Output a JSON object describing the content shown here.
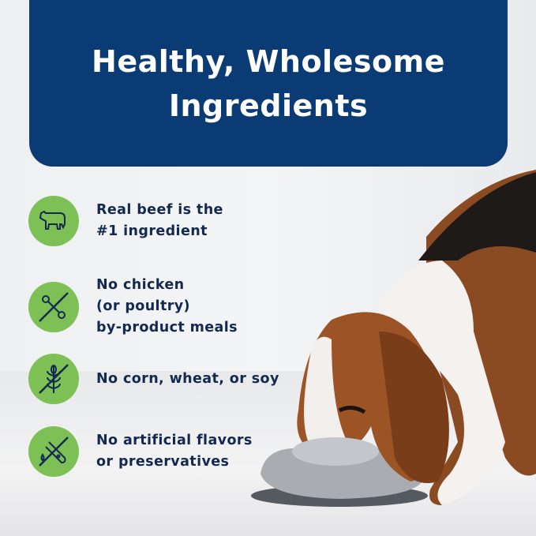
{
  "header": {
    "title_line1": "Healthy, Wholesome",
    "title_line2": "Ingredients"
  },
  "features": [
    {
      "icon": "cow-icon",
      "lines": [
        "Real beef is the",
        "#1 ingredient"
      ]
    },
    {
      "icon": "no-bone-icon",
      "lines": [
        "No chicken",
        "(or poultry)",
        "by-product meals"
      ]
    },
    {
      "icon": "no-grain-icon",
      "lines": [
        "No corn, wheat, or soy"
      ]
    },
    {
      "icon": "no-test-tube-icon",
      "lines": [
        "No artificial flavors",
        "or preservatives"
      ]
    }
  ],
  "colors": {
    "header": "#0b3b74",
    "icon_circle": "#7dc055",
    "text": "#14294f"
  }
}
